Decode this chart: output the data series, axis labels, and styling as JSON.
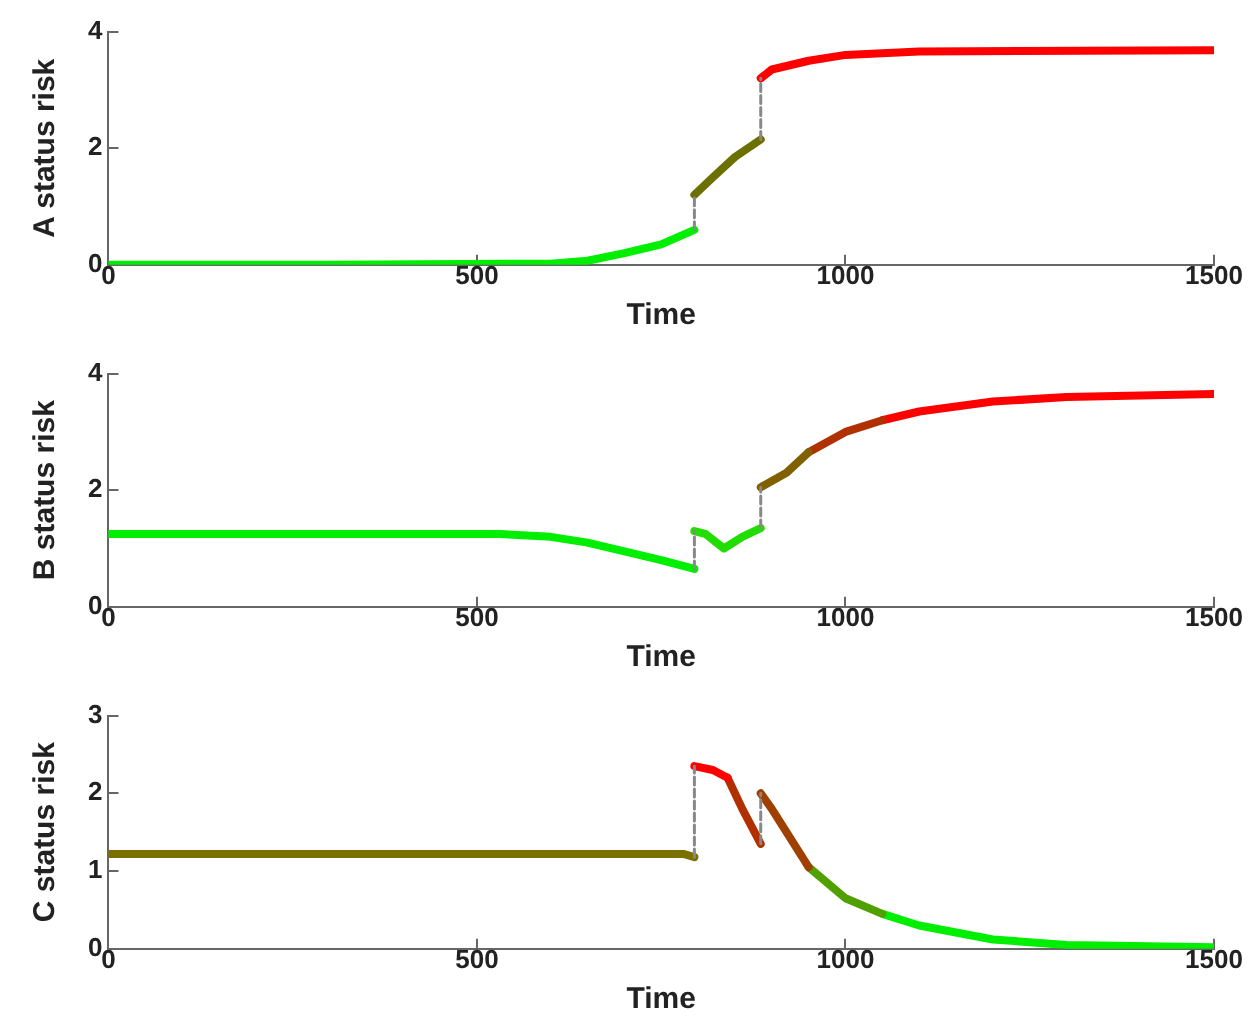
{
  "chart_data": [
    {
      "type": "line",
      "xlabel": "Time",
      "ylabel": "A status risk",
      "xlim": [
        0,
        1500
      ],
      "xticks": [
        0,
        500,
        1000,
        1500
      ],
      "ylim": [
        0,
        4
      ],
      "yticks": [
        0,
        2,
        4
      ],
      "grid": false,
      "legend": false,
      "series": [
        {
          "x": [
            0,
            300,
            600,
            650,
            700,
            750,
            795
          ],
          "values": [
            0,
            0,
            0.02,
            0.07,
            0.2,
            0.35,
            0.6
          ],
          "color": "#00ee00"
        },
        {
          "x": [
            795,
            820,
            850,
            885
          ],
          "values": [
            1.2,
            1.5,
            1.85,
            2.15
          ],
          "color": "#6b7000"
        },
        {
          "x": [
            885,
            900,
            950,
            1000,
            1100,
            1500
          ],
          "values": [
            3.2,
            3.35,
            3.5,
            3.6,
            3.66,
            3.68
          ],
          "color": "#ff0000"
        },
        {
          "x": [
            795,
            795
          ],
          "values": [
            0.6,
            1.2
          ],
          "color": "#888888",
          "line_style": "dashed"
        },
        {
          "x": [
            885,
            885
          ],
          "values": [
            2.15,
            3.2
          ],
          "color": "#888888",
          "line_style": "dashed"
        }
      ]
    },
    {
      "type": "line",
      "xlabel": "Time",
      "ylabel": "B status risk",
      "xlim": [
        0,
        1500
      ],
      "xticks": [
        0,
        500,
        1000,
        1500
      ],
      "ylim": [
        0,
        4
      ],
      "yticks": [
        0,
        2,
        4
      ],
      "grid": false,
      "legend": false,
      "series": [
        {
          "x": [
            0,
            530,
            600,
            650,
            700,
            750,
            795
          ],
          "values": [
            1.25,
            1.25,
            1.2,
            1.1,
            0.95,
            0.8,
            0.65
          ],
          "color": "#00ee00"
        },
        {
          "x": [
            795,
            810,
            835,
            860,
            885
          ],
          "values": [
            1.3,
            1.25,
            1.0,
            1.2,
            1.35
          ],
          "color": "#22dd00"
        },
        {
          "x": [
            885,
            920,
            950
          ],
          "values": [
            2.05,
            2.3,
            2.65
          ],
          "color": "#806000"
        },
        {
          "x": [
            950,
            1000,
            1050
          ],
          "values": [
            2.65,
            3.0,
            3.2
          ],
          "color": "#b03000"
        },
        {
          "x": [
            1050,
            1100,
            1200,
            1300,
            1500
          ],
          "values": [
            3.2,
            3.35,
            3.52,
            3.6,
            3.65
          ],
          "color": "#ff0000"
        },
        {
          "x": [
            795,
            795
          ],
          "values": [
            0.65,
            1.3
          ],
          "color": "#888888",
          "line_style": "dashed"
        },
        {
          "x": [
            885,
            885
          ],
          "values": [
            1.35,
            2.05
          ],
          "color": "#888888",
          "line_style": "dashed"
        }
      ]
    },
    {
      "type": "line",
      "xlabel": "Time",
      "ylabel": "C status risk",
      "xlim": [
        0,
        1500
      ],
      "xticks": [
        0,
        500,
        1000,
        1500
      ],
      "ylim": [
        0,
        3
      ],
      "yticks": [
        0,
        1,
        2,
        3
      ],
      "grid": false,
      "legend": false,
      "series": [
        {
          "x": [
            0,
            780,
            795
          ],
          "values": [
            1.22,
            1.22,
            1.18
          ],
          "color": "#7a7000"
        },
        {
          "x": [
            795,
            820,
            840
          ],
          "values": [
            2.35,
            2.3,
            2.2
          ],
          "color": "#ff0000"
        },
        {
          "x": [
            840,
            860,
            885
          ],
          "values": [
            2.2,
            1.8,
            1.35
          ],
          "color": "#b03000"
        },
        {
          "x": [
            885,
            900,
            950
          ],
          "values": [
            2.0,
            1.8,
            1.05
          ],
          "color": "#a04000"
        },
        {
          "x": [
            950,
            1000,
            1050
          ],
          "values": [
            1.05,
            0.65,
            0.45
          ],
          "color": "#50a000"
        },
        {
          "x": [
            1050,
            1100,
            1200,
            1300,
            1500
          ],
          "values": [
            0.45,
            0.3,
            0.12,
            0.05,
            0.02
          ],
          "color": "#00ee00"
        },
        {
          "x": [
            795,
            795
          ],
          "values": [
            1.18,
            2.35
          ],
          "color": "#888888",
          "line_style": "dashed"
        },
        {
          "x": [
            885,
            885
          ],
          "values": [
            1.35,
            2.0
          ],
          "color": "#888888",
          "line_style": "dashed"
        }
      ]
    }
  ]
}
